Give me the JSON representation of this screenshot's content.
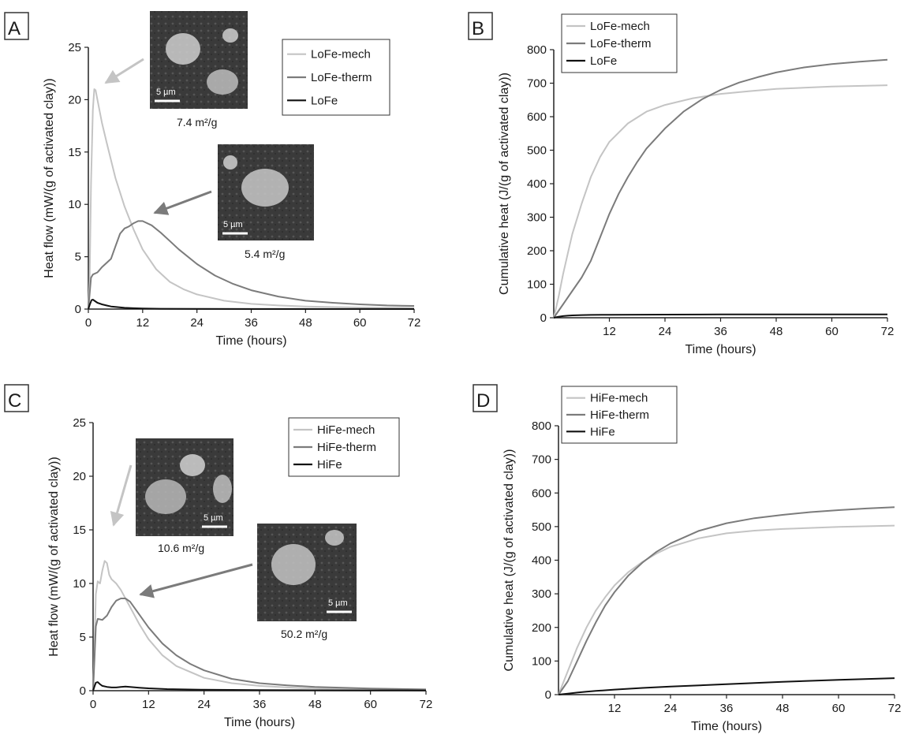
{
  "colors": {
    "mech": "#c4c4c4",
    "therm": "#7b7b7b",
    "base": "#111111",
    "axis": "#222222"
  },
  "chart_data": [
    {
      "panel": "A",
      "type": "line",
      "xlabel": "Time (hours)",
      "ylabel": "Heat flow (mW/(g of activated clay))",
      "xlim": [
        0,
        72
      ],
      "ylim": [
        0,
        25
      ],
      "xticks": [
        0,
        12,
        24,
        36,
        48,
        60,
        72
      ],
      "yticks": [
        0,
        5,
        10,
        15,
        20,
        25
      ],
      "legend_position": "top-right",
      "series": [
        {
          "name": "LoFe-mech",
          "color_key": "mech",
          "x": [
            0,
            0.3,
            0.6,
            1.0,
            1.3,
            1.6,
            2.0,
            3,
            4,
            6,
            8,
            10,
            12,
            15,
            18,
            21,
            24,
            30,
            36,
            42,
            48,
            60,
            72
          ],
          "y": [
            0,
            3,
            12,
            19,
            21,
            20.9,
            20,
            17.8,
            16,
            12.5,
            9.8,
            7.6,
            5.7,
            3.8,
            2.6,
            1.9,
            1.4,
            0.8,
            0.5,
            0.35,
            0.25,
            0.15,
            0.1
          ]
        },
        {
          "name": "LoFe-therm",
          "color_key": "therm",
          "x": [
            0,
            0.3,
            0.6,
            1,
            2,
            3,
            4,
            5,
            6,
            7,
            8,
            8.5,
            9,
            10,
            11,
            12,
            14,
            16,
            18,
            20,
            24,
            28,
            32,
            36,
            42,
            48,
            54,
            60,
            66,
            72
          ],
          "y": [
            0,
            1.5,
            3,
            3.3,
            3.5,
            4.0,
            4.4,
            4.8,
            6.0,
            7.2,
            7.7,
            7.8,
            7.9,
            8.2,
            8.4,
            8.4,
            8.0,
            7.3,
            6.5,
            5.7,
            4.3,
            3.2,
            2.4,
            1.8,
            1.2,
            0.8,
            0.6,
            0.45,
            0.35,
            0.3
          ]
        },
        {
          "name": "LoFe",
          "color_key": "base",
          "x": [
            0,
            0.3,
            0.7,
            1.0,
            1.5,
            2,
            3,
            4,
            5,
            6,
            8,
            10,
            12,
            16,
            24,
            36,
            48,
            60,
            72
          ],
          "y": [
            0,
            0.4,
            0.85,
            0.9,
            0.75,
            0.6,
            0.45,
            0.35,
            0.25,
            0.2,
            0.12,
            0.08,
            0.05,
            0.03,
            0.02,
            0.01,
            0.01,
            0.01,
            0.01
          ]
        }
      ],
      "annotations": [
        {
          "text": "7.4 m²/g",
          "scale": "5 µm"
        },
        {
          "text": "5.4 m²/g",
          "scale": "5 µm"
        }
      ]
    },
    {
      "panel": "B",
      "type": "line",
      "xlabel": "Time (hours)",
      "ylabel": "Cumulative heat (J/(g of activated clay))",
      "xlim": [
        0,
        72
      ],
      "ylim": [
        0,
        800
      ],
      "xticks": [
        12,
        24,
        36,
        48,
        60,
        72
      ],
      "yticks": [
        0,
        100,
        200,
        300,
        400,
        500,
        600,
        700,
        800
      ],
      "legend_position": "top-left",
      "series": [
        {
          "name": "LoFe-mech",
          "color_key": "mech",
          "x": [
            0,
            1,
            2,
            3,
            4,
            6,
            8,
            10,
            12,
            16,
            20,
            24,
            30,
            36,
            42,
            48,
            60,
            72
          ],
          "y": [
            0,
            60,
            130,
            190,
            250,
            340,
            420,
            480,
            525,
            580,
            615,
            635,
            655,
            668,
            676,
            683,
            690,
            694
          ]
        },
        {
          "name": "LoFe-therm",
          "color_key": "therm",
          "x": [
            0,
            2,
            4,
            6,
            8,
            10,
            12,
            14,
            16,
            18,
            20,
            24,
            28,
            32,
            36,
            40,
            44,
            48,
            54,
            60,
            66,
            72
          ],
          "y": [
            0,
            40,
            80,
            120,
            170,
            240,
            310,
            370,
            420,
            465,
            505,
            565,
            615,
            652,
            680,
            702,
            718,
            732,
            747,
            757,
            764,
            770
          ]
        },
        {
          "name": "LoFe",
          "color_key": "base",
          "x": [
            0,
            1,
            2,
            3,
            4,
            6,
            8,
            12,
            24,
            36,
            48,
            60,
            72
          ],
          "y": [
            0,
            3,
            5,
            6,
            7,
            8,
            8.5,
            9,
            9.5,
            9.8,
            10,
            10,
            10
          ]
        }
      ]
    },
    {
      "panel": "C",
      "type": "line",
      "xlabel": "Time (hours)",
      "ylabel": "Heat flow (mW/(g of activated clay))",
      "xlim": [
        0,
        72
      ],
      "ylim": [
        0,
        25
      ],
      "xticks": [
        0,
        12,
        24,
        36,
        48,
        60,
        72
      ],
      "yticks": [
        0,
        5,
        10,
        15,
        20,
        25
      ],
      "legend_position": "top-right",
      "series": [
        {
          "name": "HiFe-mech",
          "color_key": "mech",
          "x": [
            0,
            0.3,
            0.6,
            1.0,
            1.5,
            2.0,
            2.5,
            3.0,
            3.5,
            4,
            5,
            6,
            8,
            10,
            12,
            15,
            18,
            24,
            30,
            36,
            42,
            48,
            60,
            72
          ],
          "y": [
            0,
            4,
            9,
            10.2,
            10.0,
            11.2,
            12.1,
            11.9,
            10.8,
            10.4,
            10.0,
            9.4,
            7.8,
            6.2,
            4.8,
            3.3,
            2.3,
            1.2,
            0.7,
            0.45,
            0.3,
            0.2,
            0.12,
            0.08
          ]
        },
        {
          "name": "HiFe-therm",
          "color_key": "therm",
          "x": [
            0,
            0.3,
            0.6,
            1,
            2,
            3,
            4,
            5,
            6,
            7,
            8,
            10,
            12,
            15,
            18,
            21,
            24,
            30,
            36,
            42,
            48,
            60,
            72
          ],
          "y": [
            0,
            3,
            6,
            6.7,
            6.6,
            7.0,
            7.8,
            8.4,
            8.6,
            8.6,
            8.3,
            7.1,
            5.9,
            4.4,
            3.3,
            2.5,
            1.9,
            1.1,
            0.7,
            0.5,
            0.35,
            0.2,
            0.12
          ]
        },
        {
          "name": "HiFe",
          "color_key": "base",
          "x": [
            0,
            0.3,
            0.6,
            1.0,
            1.5,
            2,
            3,
            4,
            5,
            6,
            7,
            8,
            10,
            12,
            16,
            24,
            36,
            48,
            60,
            72
          ],
          "y": [
            0,
            0.4,
            0.75,
            0.8,
            0.6,
            0.45,
            0.35,
            0.3,
            0.3,
            0.35,
            0.38,
            0.35,
            0.28,
            0.22,
            0.15,
            0.09,
            0.06,
            0.04,
            0.03,
            0.02
          ]
        }
      ],
      "annotations": [
        {
          "text": "10.6 m²/g",
          "scale": "5 µm"
        },
        {
          "text": "50.2 m²/g",
          "scale": "5 µm"
        }
      ]
    },
    {
      "panel": "D",
      "type": "line",
      "xlabel": "Time (hours)",
      "ylabel": "Cumulative heat (J/(g of activated clay))",
      "xlim": [
        0,
        72
      ],
      "ylim": [
        0,
        800
      ],
      "xticks": [
        12,
        24,
        36,
        48,
        60,
        72
      ],
      "yticks": [
        0,
        100,
        200,
        300,
        400,
        500,
        600,
        700,
        800
      ],
      "legend_position": "top-left",
      "series": [
        {
          "name": "HiFe-mech",
          "color_key": "mech",
          "x": [
            0,
            2,
            4,
            6,
            8,
            10,
            12,
            15,
            18,
            21,
            24,
            30,
            36,
            42,
            48,
            60,
            72
          ],
          "y": [
            0,
            70,
            140,
            200,
            250,
            290,
            325,
            365,
            395,
            420,
            440,
            465,
            480,
            488,
            493,
            499,
            503
          ]
        },
        {
          "name": "HiFe-therm",
          "color_key": "therm",
          "x": [
            0,
            2,
            4,
            6,
            8,
            10,
            12,
            15,
            18,
            21,
            24,
            30,
            36,
            42,
            48,
            54,
            60,
            66,
            72
          ],
          "y": [
            0,
            40,
            100,
            160,
            215,
            265,
            305,
            355,
            393,
            425,
            450,
            487,
            510,
            525,
            535,
            543,
            549,
            554,
            558
          ]
        },
        {
          "name": "HiFe",
          "color_key": "base",
          "x": [
            0,
            2,
            4,
            6,
            8,
            12,
            18,
            24,
            36,
            48,
            60,
            72
          ],
          "y": [
            0,
            3,
            6,
            9,
            11,
            15,
            20,
            24,
            31,
            38,
            44,
            49
          ]
        }
      ]
    }
  ]
}
